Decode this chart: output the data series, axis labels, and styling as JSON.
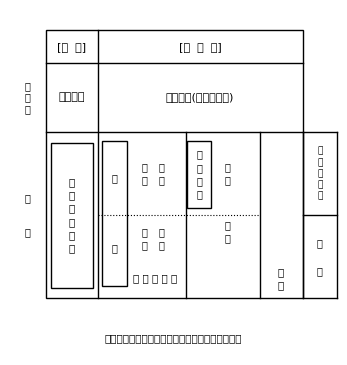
{
  "title": "アジアの伝統的生活様式と主作物の類型の模式図",
  "fig_width": 3.47,
  "fig_height": 3.65,
  "bg_color": "#ffffff",
  "header_bokusho": "[牧  畜]",
  "header_hibokusho": "[非  牧  畜]",
  "row1_left_label": "非\n農\n業",
  "row1_mongol": "モンゴル",
  "row1_siberia": "シベリア(狩猟・採集)",
  "row2_left_label": "農\n\n業",
  "indosub_text": "イ\nン\nド\n亜\n大\n陸",
  "chugoku_text": "中\n\n\n\n\n国",
  "katouhoku_upper": "華\n北",
  "touhoku_upper": "東\n北",
  "katounan_lower": "華\n南",
  "kachu_lower": "華\n中",
  "chosen_text": "朝\n鮮\n半\n島",
  "kitabu_text": "北\n部",
  "nanbu_text": "南\n部",
  "tonan_text": "東 南 ア ジ ア",
  "nihon_text": "日\n本",
  "right_label_top": "雑\n穀\n・\n麦\n作",
  "right_label_bot": "稲\n\n作"
}
